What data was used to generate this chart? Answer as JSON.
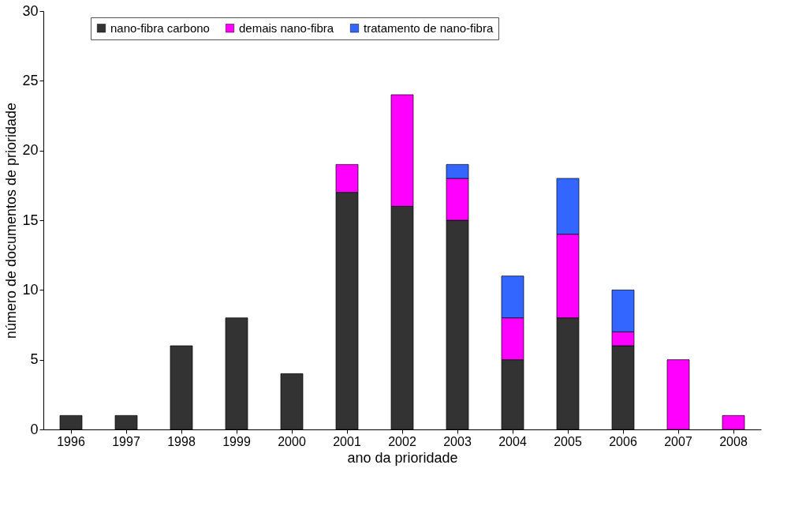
{
  "chart_data": {
    "type": "bar",
    "stacked": true,
    "xlabel": "ano da prioridade",
    "ylabel": "número de documentos de prioridade",
    "categories": [
      "1996",
      "1997",
      "1998",
      "1999",
      "2000",
      "2001",
      "2002",
      "2003",
      "2004",
      "2005",
      "2006",
      "2007",
      "2008"
    ],
    "series": [
      {
        "name": "nano-fibra carbono",
        "color": "#333333",
        "values": [
          1,
          1,
          6,
          8,
          4,
          17,
          16,
          15,
          5,
          8,
          6,
          null,
          null
        ]
      },
      {
        "name": "demais nano-fibra",
        "color": "#ff00ff",
        "values": [
          null,
          null,
          null,
          null,
          null,
          2,
          8,
          3,
          3,
          6,
          1,
          5,
          1
        ]
      },
      {
        "name": "tratamento de nano-fibra",
        "color": "#3366ff",
        "values": [
          null,
          null,
          null,
          null,
          null,
          null,
          null,
          1,
          3,
          4,
          3,
          null,
          null
        ]
      }
    ],
    "ylim": [
      0,
      30
    ],
    "yticks": [
      0,
      5,
      10,
      15,
      20,
      25,
      30
    ],
    "grid": false,
    "legend": "top"
  }
}
